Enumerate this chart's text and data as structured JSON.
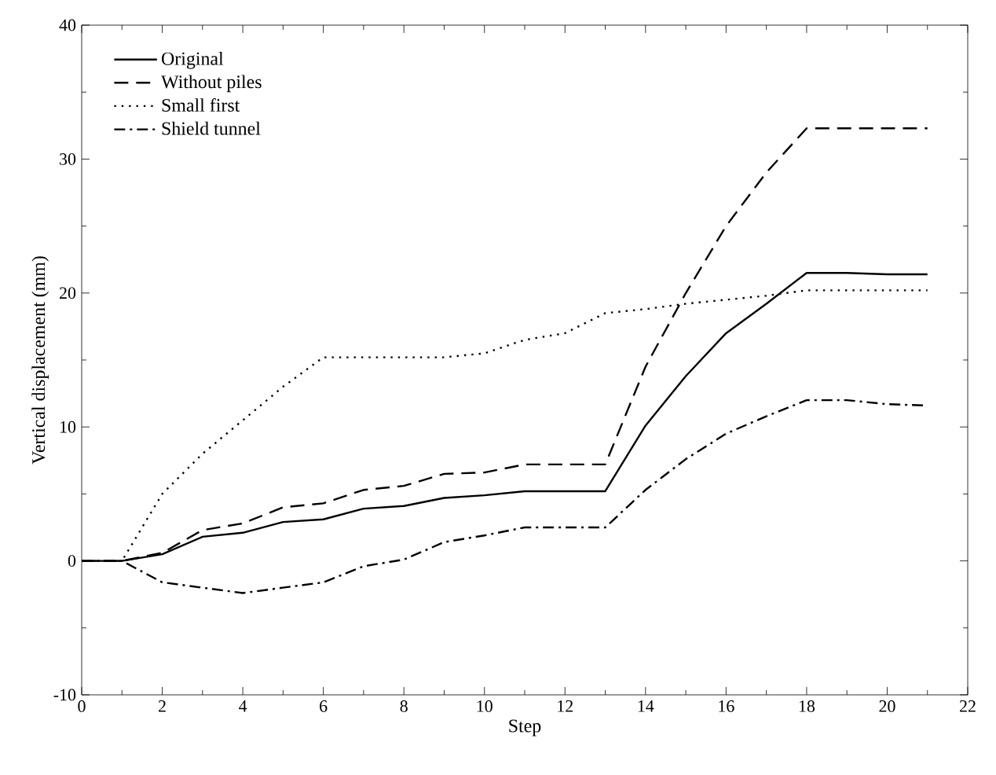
{
  "chart_data": {
    "type": "line",
    "xlabel": "Step",
    "ylabel": "Vertical displacement (mm)",
    "xlim": [
      0,
      22
    ],
    "ylim": [
      -10,
      40
    ],
    "xticks": [
      0,
      2,
      4,
      6,
      8,
      10,
      12,
      14,
      16,
      18,
      20,
      22
    ],
    "yticks": [
      -10,
      0,
      10,
      20,
      30,
      40
    ],
    "legend": "top left",
    "grid": false,
    "marker": "none",
    "x": [
      0,
      1,
      2,
      3,
      4,
      5,
      6,
      7,
      8,
      9,
      10,
      11,
      12,
      13,
      14,
      15,
      16,
      17,
      18,
      19,
      20,
      21
    ],
    "series": [
      {
        "name": "Original",
        "color": "#000000",
        "line_style": "solid",
        "values": [
          0,
          0,
          0.5,
          1.8,
          2.1,
          2.9,
          3.1,
          3.9,
          4.1,
          4.7,
          4.9,
          5.2,
          5.2,
          5.2,
          10.1,
          13.8,
          17.0,
          19.2,
          21.5,
          21.5,
          21.4,
          21.4
        ]
      },
      {
        "name": "Without piles",
        "color": "#000000",
        "line_style": "dashed",
        "values": [
          0,
          0,
          0.6,
          2.3,
          2.8,
          4.0,
          4.3,
          5.3,
          5.6,
          6.5,
          6.6,
          7.2,
          7.2,
          7.2,
          14.5,
          20,
          25,
          29,
          32.3,
          32.3,
          32.3,
          32.3
        ]
      },
      {
        "name": "Small first",
        "color": "#000000",
        "line_style": "dotted",
        "values": [
          0,
          0,
          5,
          8,
          10.5,
          13,
          15.2,
          15.2,
          15.2,
          15.2,
          15.5,
          16.5,
          17,
          18.5,
          18.8,
          19.2,
          19.5,
          19.8,
          20.2,
          20.2,
          20.2,
          20.2
        ]
      },
      {
        "name": "Shield tunnel",
        "color": "#000000",
        "line_style": "dashdot",
        "values": [
          0,
          0,
          -1.6,
          -2,
          -2.4,
          -2,
          -1.6,
          -0.4,
          0.1,
          1.4,
          1.9,
          2.5,
          2.5,
          2.5,
          5.3,
          7.6,
          9.5,
          10.8,
          12,
          12,
          11.7,
          11.6
        ]
      }
    ]
  }
}
